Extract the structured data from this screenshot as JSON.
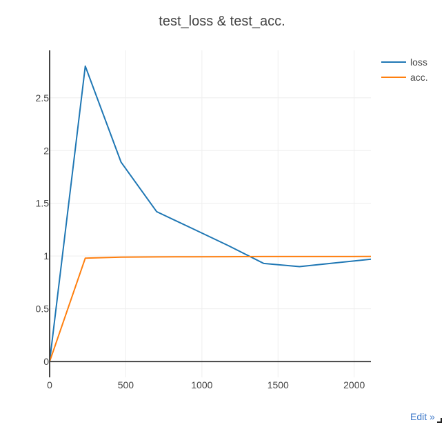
{
  "chart_data": {
    "type": "line",
    "title": "test_loss & test_acc.",
    "xlabel": "",
    "ylabel": "",
    "xlim": [
      0,
      2110
    ],
    "ylim": [
      -0.15,
      2.95
    ],
    "xticks": [
      0,
      500,
      1000,
      1500,
      2000
    ],
    "yticks": [
      0,
      0.5,
      1,
      1.5,
      2,
      2.5
    ],
    "grid": true,
    "legend": "top-right",
    "series": [
      {
        "name": "loss",
        "color": "#1f77b4",
        "x": [
          0,
          234,
          469,
          703,
          938,
          1172,
          1406,
          1641,
          1875,
          2110
        ],
        "y": [
          0.0,
          2.8,
          1.89,
          1.42,
          1.26,
          1.1,
          0.93,
          0.9,
          0.935,
          0.97
        ]
      },
      {
        "name": "acc.",
        "color": "#ff7f0e",
        "x": [
          0,
          234,
          469,
          703,
          938,
          1172,
          1406,
          1641,
          1875,
          2110
        ],
        "y": [
          0.0,
          0.98,
          0.99,
          0.992,
          0.993,
          0.994,
          0.995,
          0.995,
          0.995,
          0.996
        ]
      }
    ]
  },
  "toolbar": {
    "edit_label": "Edit »"
  }
}
